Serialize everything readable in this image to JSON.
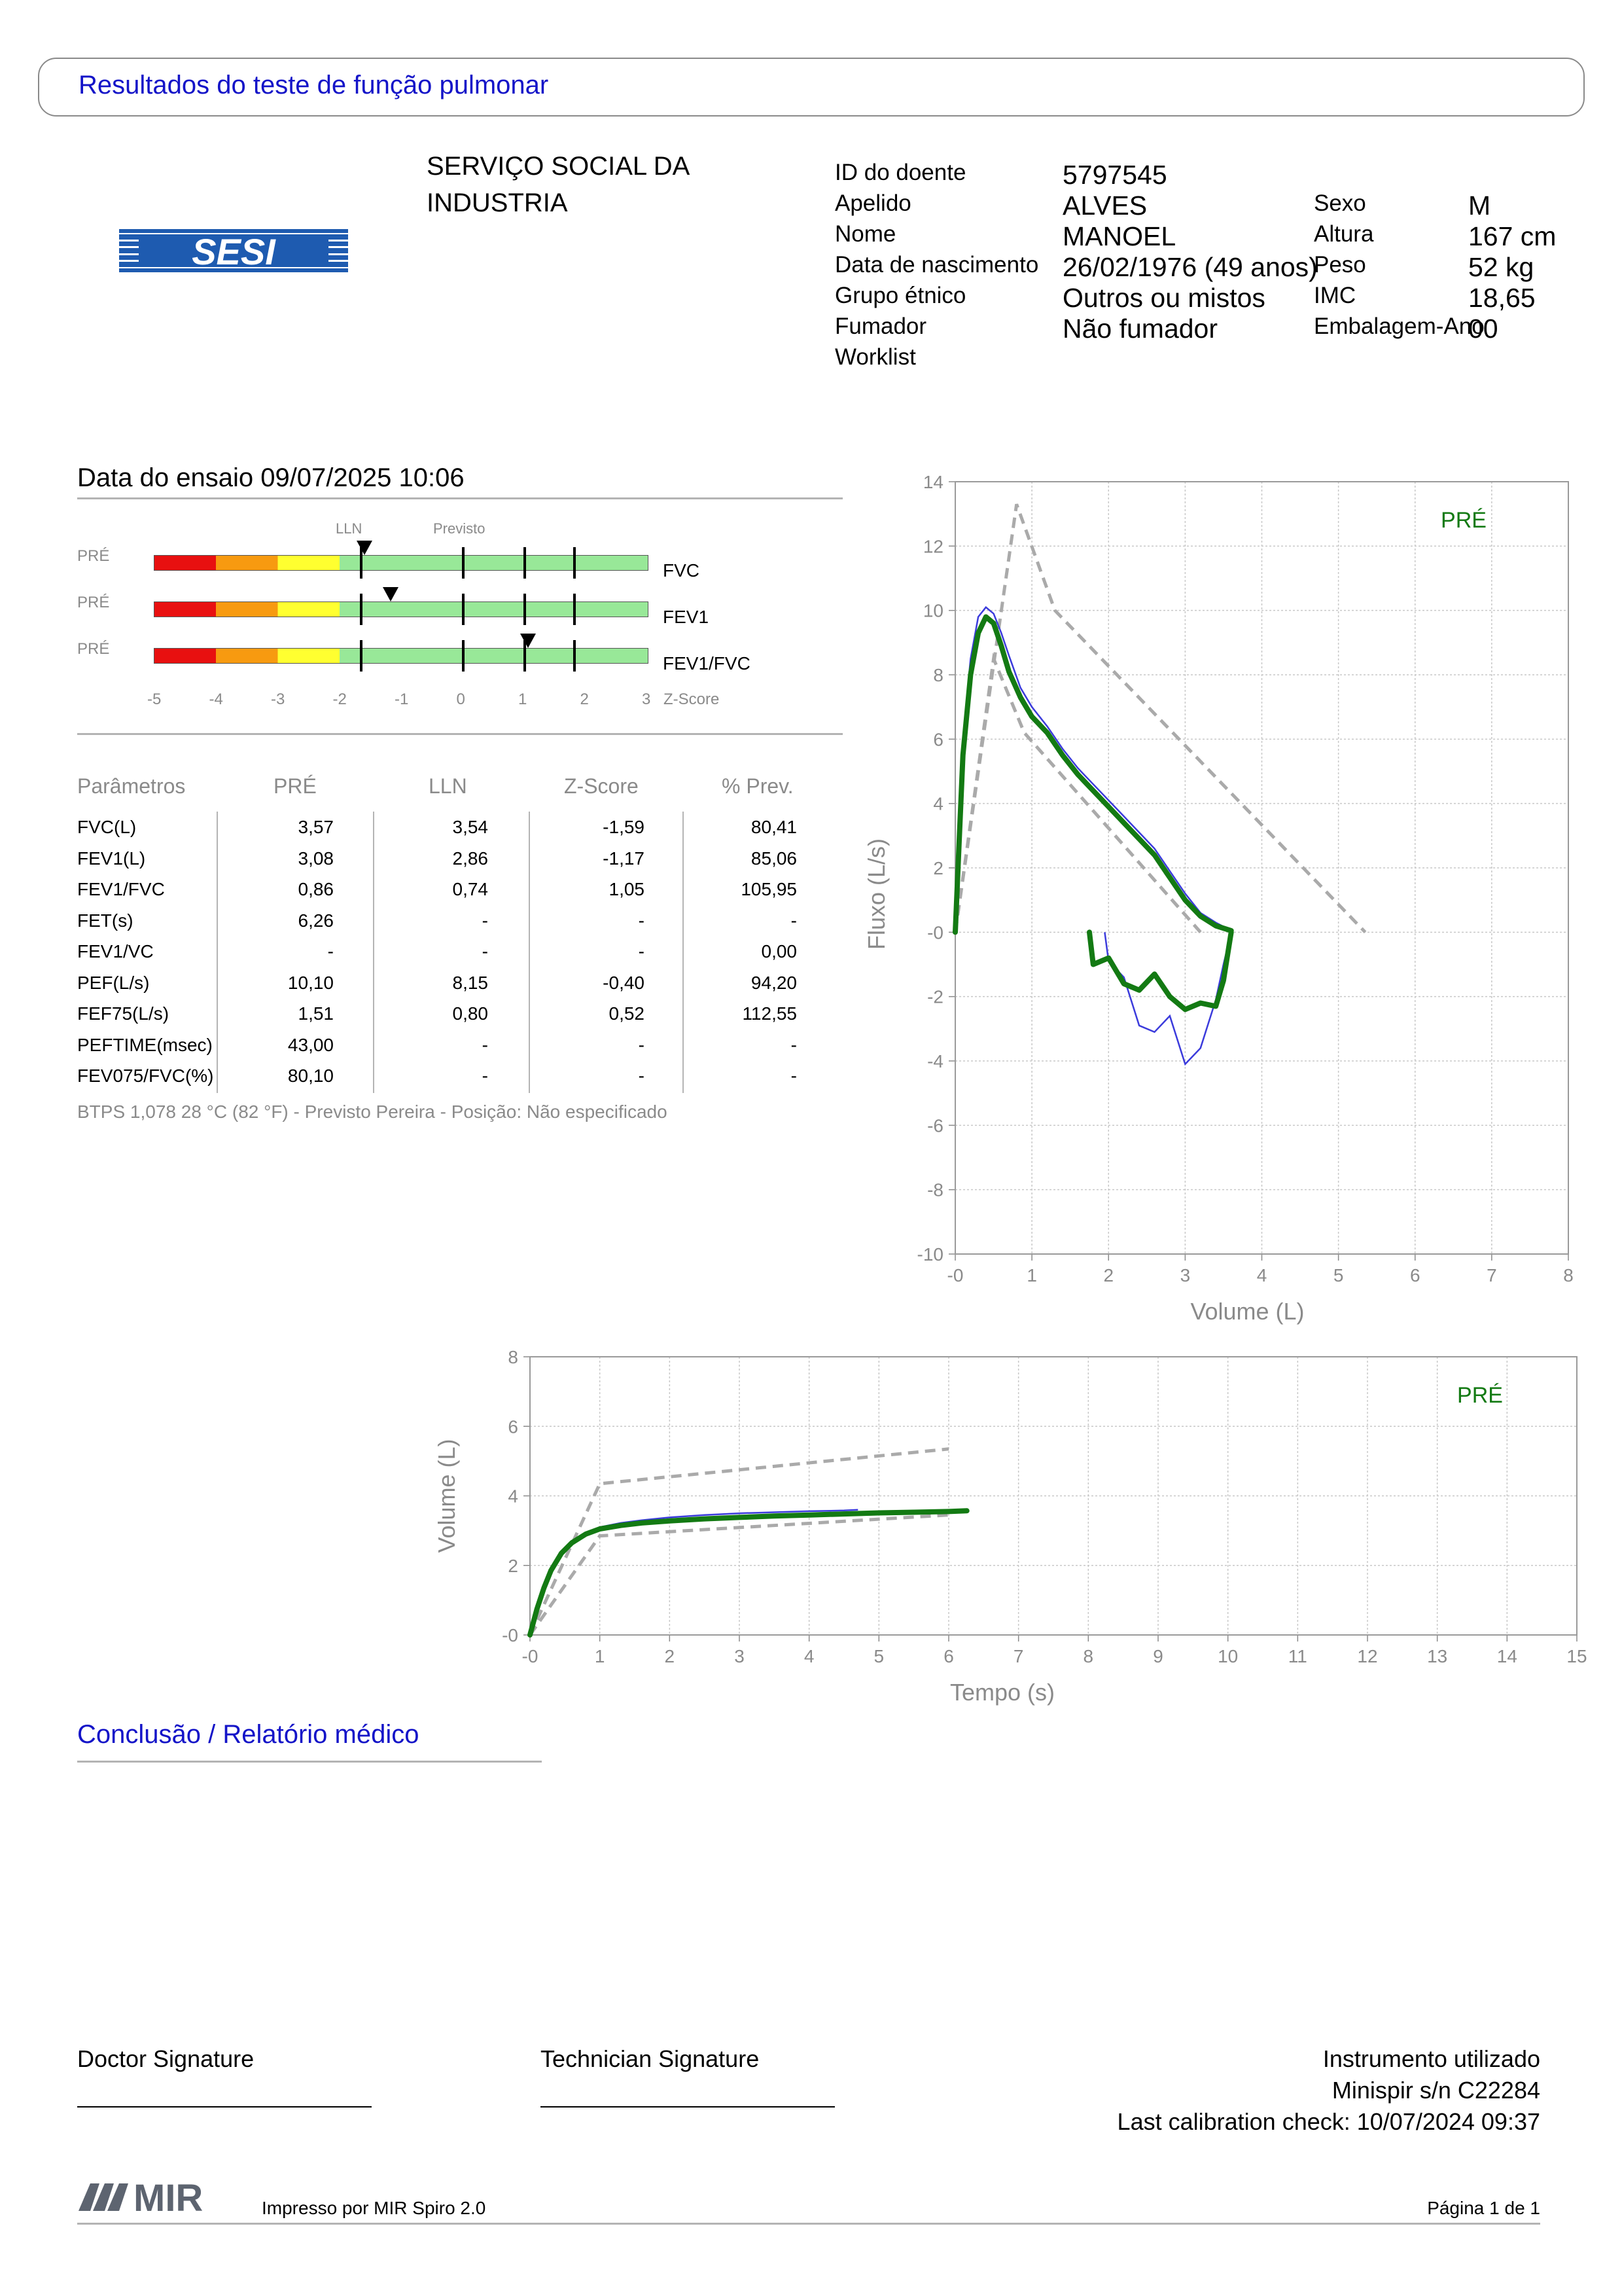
{
  "header": {
    "title": "Resultados do teste de função pulmonar"
  },
  "organization": {
    "logo_text": "SESI",
    "name_line1": "SERVIÇO SOCIAL DA",
    "name_line2": "INDUSTRIA"
  },
  "patient": {
    "id_label": "ID do doente",
    "id_value": "5797545",
    "surname_label": "Apelido",
    "surname_value": "ALVES",
    "name_label": "Nome",
    "name_value": "MANOEL",
    "dob_label": "Data de nascimento",
    "dob_value": "26/02/1976 (49 anos)",
    "ethnic_label": "Grupo étnico",
    "ethnic_value": "Outros ou mistos",
    "smoker_label": "Fumador",
    "smoker_value": "Não fumador",
    "worklist_label": "Worklist",
    "sex_label": "Sexo",
    "sex_value": "M",
    "height_label": "Altura",
    "height_value": "167 cm",
    "weight_label": "Peso",
    "weight_value": "52 kg",
    "bmi_label": "IMC",
    "bmi_value": "18,65",
    "packyears_label": "Embalagem-Ano",
    "packyears_value": "00"
  },
  "test": {
    "date_label": "Data do ensaio 09/07/2025 10:06"
  },
  "zscore": {
    "lln_label": "LLN",
    "pred_label": "Previsto",
    "axis_label": "Z-Score",
    "ticks": [
      "-5",
      "-4",
      "-3",
      "-2",
      "-1",
      "0",
      "1",
      "2",
      "3"
    ],
    "zone_colors": [
      "#e81010",
      "#f79a10",
      "#ffff30",
      "#98e898"
    ],
    "rows": [
      {
        "phase": "PRÉ",
        "param": "FVC",
        "z": -1.59
      },
      {
        "phase": "PRÉ",
        "param": "FEV1",
        "z": -1.17
      },
      {
        "phase": "PRÉ",
        "param": "FEV1/FVC",
        "z": 1.05
      }
    ]
  },
  "table": {
    "headers": [
      "Parâmetros",
      "PRÉ",
      "LLN",
      "Z-Score",
      "% Prev."
    ],
    "rows": [
      [
        "FVC(L)",
        "3,57",
        "3,54",
        "-1,59",
        "80,41"
      ],
      [
        "FEV1(L)",
        "3,08",
        "2,86",
        "-1,17",
        "85,06"
      ],
      [
        "FEV1/FVC",
        "0,86",
        "0,74",
        "1,05",
        "105,95"
      ],
      [
        "FET(s)",
        "6,26",
        "-",
        "-",
        "-"
      ],
      [
        "FEV1/VC",
        "-",
        "-",
        "-",
        "0,00"
      ],
      [
        "PEF(L/s)",
        "10,10",
        "8,15",
        "-0,40",
        "94,20"
      ],
      [
        "FEF75(L/s)",
        "1,51",
        "0,80",
        "0,52",
        "112,55"
      ],
      [
        "PEFTIME(msec)",
        "43,00",
        "-",
        "-",
        "-"
      ],
      [
        "FEV075/FVC(%)",
        "80,10",
        "-",
        "-",
        "-"
      ]
    ],
    "footnote": "BTPS 1,078 28 °C (82 °F) - Previsto Pereira - Posição: Não especificado"
  },
  "chart_data": [
    {
      "type": "line",
      "xlabel": "Volume (L)",
      "ylabel": "Fluxo (L/s)",
      "xlim": [
        0,
        8
      ],
      "ylim": [
        -10,
        14
      ],
      "x_ticks": [
        "-0",
        "1",
        "2",
        "3",
        "4",
        "5",
        "6",
        "7",
        "8"
      ],
      "y_ticks": [
        "14",
        "12",
        "10",
        "8",
        "6",
        "4",
        "2",
        "-0",
        "-2",
        "-4",
        "-6",
        "-8",
        "-10"
      ],
      "grid": true,
      "annotation": "PRÉ",
      "colors": {
        "pre": "#137a13",
        "alt": "#3b3bdc",
        "predicted": "#aaaaaa"
      },
      "series": [
        {
          "name": "",
          "style": "predicted-dashed",
          "x": [
            0,
            0.8,
            1.3,
            5.35
          ],
          "y": [
            0,
            13.3,
            10.0,
            0
          ]
        },
        {
          "name": "",
          "style": "predicted-dashed",
          "x": [
            0,
            0.5,
            0.9,
            3.2
          ],
          "y": [
            0,
            8.5,
            6.2,
            0
          ]
        },
        {
          "name": "",
          "style": "blue-thin",
          "x": [
            0,
            0.05,
            0.1,
            0.2,
            0.3,
            0.4,
            0.5,
            0.6,
            0.7,
            0.85,
            1.0,
            1.2,
            1.4,
            1.6,
            1.8,
            2.0,
            2.2,
            2.4,
            2.6,
            2.8,
            3.0,
            3.2,
            3.4,
            3.6
          ],
          "y": [
            0,
            3.0,
            6.0,
            8.5,
            9.8,
            10.1,
            9.9,
            9.3,
            8.6,
            7.6,
            7.0,
            6.4,
            5.7,
            5.1,
            4.6,
            4.1,
            3.6,
            3.1,
            2.6,
            1.9,
            1.2,
            0.6,
            0.3,
            0.05
          ]
        },
        {
          "name": "",
          "style": "green-thick",
          "x": [
            0,
            0.05,
            0.1,
            0.2,
            0.3,
            0.4,
            0.5,
            0.6,
            0.7,
            0.85,
            1.0,
            1.2,
            1.4,
            1.6,
            1.8,
            2.0,
            2.2,
            2.4,
            2.6,
            2.8,
            3.0,
            3.2,
            3.4,
            3.6
          ],
          "y": [
            0,
            2.8,
            5.5,
            8.0,
            9.3,
            9.8,
            9.6,
            8.9,
            8.1,
            7.3,
            6.7,
            6.2,
            5.5,
            4.9,
            4.4,
            3.9,
            3.4,
            2.9,
            2.4,
            1.7,
            1.0,
            0.5,
            0.2,
            0.05
          ]
        },
        {
          "name": "",
          "style": "blue-thin",
          "x": [
            1.95,
            2.0,
            2.2,
            2.4,
            2.6,
            2.8,
            3.0,
            3.2,
            3.4,
            3.5,
            3.6
          ],
          "y": [
            0,
            -0.9,
            -1.4,
            -2.9,
            -3.1,
            -2.6,
            -4.1,
            -3.6,
            -2.1,
            -1.0,
            0
          ]
        },
        {
          "name": "",
          "style": "green-thick",
          "x": [
            1.75,
            1.8,
            2.0,
            2.2,
            2.4,
            2.6,
            2.8,
            3.0,
            3.2,
            3.4,
            3.5,
            3.6
          ],
          "y": [
            0,
            -1.0,
            -0.8,
            -1.6,
            -1.8,
            -1.3,
            -2.0,
            -2.4,
            -2.2,
            -2.3,
            -1.5,
            0
          ]
        }
      ]
    },
    {
      "type": "line",
      "xlabel": "Tempo (s)",
      "ylabel": "Volume (L)",
      "xlim": [
        0,
        15
      ],
      "ylim": [
        0,
        8
      ],
      "x_ticks": [
        "-0",
        "1",
        "2",
        "3",
        "4",
        "5",
        "6",
        "7",
        "8",
        "9",
        "10",
        "11",
        "12",
        "13",
        "14",
        "15"
      ],
      "y_ticks": [
        "8",
        "6",
        "4",
        "2",
        "-0"
      ],
      "grid": true,
      "annotation": "PRÉ",
      "series": [
        {
          "name": "",
          "style": "predicted-dashed",
          "x": [
            0,
            1.0,
            6.0
          ],
          "y": [
            0,
            4.35,
            5.35
          ]
        },
        {
          "name": "",
          "style": "predicted-dashed",
          "x": [
            0,
            1.0,
            6.0
          ],
          "y": [
            0,
            2.85,
            3.45
          ]
        },
        {
          "name": "",
          "style": "blue-thin",
          "x": [
            0,
            0.1,
            0.2,
            0.3,
            0.45,
            0.6,
            0.8,
            1.0,
            1.3,
            1.6,
            2.0,
            2.5,
            3.0,
            3.5,
            4.0,
            4.5,
            4.7
          ],
          "y": [
            0,
            0.8,
            1.4,
            1.9,
            2.4,
            2.7,
            2.95,
            3.1,
            3.22,
            3.3,
            3.38,
            3.45,
            3.5,
            3.53,
            3.56,
            3.58,
            3.6
          ]
        },
        {
          "name": "",
          "style": "green-thick",
          "x": [
            0,
            0.1,
            0.2,
            0.3,
            0.45,
            0.6,
            0.8,
            1.0,
            1.3,
            1.6,
            2.0,
            2.5,
            3.0,
            3.5,
            4.0,
            4.5,
            5.0,
            5.5,
            6.0,
            6.26
          ],
          "y": [
            0,
            0.75,
            1.35,
            1.85,
            2.35,
            2.65,
            2.9,
            3.05,
            3.15,
            3.22,
            3.28,
            3.34,
            3.38,
            3.42,
            3.45,
            3.48,
            3.51,
            3.53,
            3.55,
            3.57
          ]
        }
      ]
    }
  ],
  "conclusion": {
    "title": "Conclusão / Relatório médico"
  },
  "signatures": {
    "doctor": "Doctor Signature",
    "technician": "Technician Signature"
  },
  "instrument": {
    "line1": "Instrumento utilizado",
    "line2": "Minispir s/n C22284",
    "line3": "Last calibration check: 10/07/2024 09:37"
  },
  "footer": {
    "logo_text": "MIR",
    "printed_by": "Impresso por MIR Spiro 2.0",
    "page": "Página 1 de 1"
  }
}
